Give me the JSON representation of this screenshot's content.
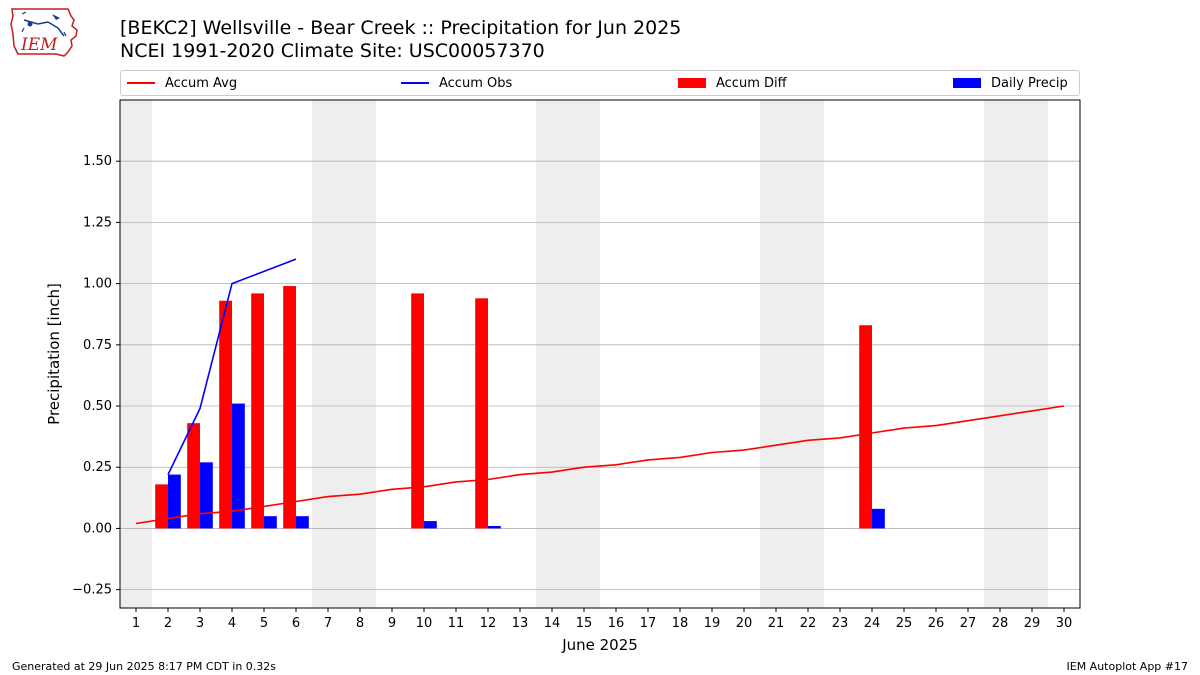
{
  "header": {
    "title": "[BEKC2] Wellsville - Bear Creek :: Precipitation for Jun 2025",
    "subtitle": "NCEI 1991-2020 Climate Site: USC00057370"
  },
  "logo": {
    "text": "IEM",
    "icon": "iowa-state-outline-icon"
  },
  "footer": {
    "left": "Generated at 29 Jun 2025 8:17 PM CDT in 0.32s",
    "right": "IEM Autoplot App #17"
  },
  "colors": {
    "avg": "#ff0000",
    "obs": "#0000ff",
    "diff": "#ff0000",
    "daily": "#0000ff",
    "weekend": "#eeeeee",
    "grid": "#b0b0b0"
  },
  "chart_data": {
    "type": "bar",
    "xlabel": "June 2025",
    "ylabel": "Precipitation [inch]",
    "xlim": [
      0.5,
      30.5
    ],
    "ylim": [
      -0.325,
      1.75
    ],
    "x": [
      1,
      2,
      3,
      4,
      5,
      6,
      7,
      8,
      9,
      10,
      11,
      12,
      13,
      14,
      15,
      16,
      17,
      18,
      19,
      20,
      21,
      22,
      23,
      24,
      25,
      26,
      27,
      28,
      29,
      30
    ],
    "x_tick_labels": [
      "1",
      "2",
      "3",
      "4",
      "5",
      "6",
      "7",
      "8",
      "9",
      "10",
      "11",
      "12",
      "13",
      "14",
      "15",
      "16",
      "17",
      "18",
      "19",
      "20",
      "21",
      "22",
      "23",
      "24",
      "25",
      "26",
      "27",
      "28",
      "29",
      "30"
    ],
    "y_ticks": [
      -0.25,
      0.0,
      0.25,
      0.5,
      0.75,
      1.0,
      1.25,
      1.5
    ],
    "y_tick_labels": [
      "−0.25",
      "0.00",
      "0.25",
      "0.50",
      "0.75",
      "1.00",
      "1.25",
      "1.50"
    ],
    "grid": "horizontal",
    "weekend_bands": [
      [
        0.5,
        1.5
      ],
      [
        6.5,
        8.5
      ],
      [
        13.5,
        15.5
      ],
      [
        20.5,
        22.5
      ],
      [
        27.5,
        29.5
      ]
    ],
    "legend": {
      "placement": "top",
      "entries": [
        {
          "label": "Accum Avg",
          "kind": "line",
          "color": "#ff0000"
        },
        {
          "label": "Accum Obs",
          "kind": "line",
          "color": "#0000ff"
        },
        {
          "label": "Accum Diff",
          "kind": "patch",
          "color": "#ff0000"
        },
        {
          "label": "Daily Precip",
          "kind": "patch",
          "color": "#0000ff"
        }
      ]
    },
    "series": [
      {
        "name": "Accum Avg",
        "kind": "line",
        "x": [
          1,
          2,
          3,
          4,
          5,
          6,
          7,
          8,
          9,
          10,
          11,
          12,
          13,
          14,
          15,
          16,
          17,
          18,
          19,
          20,
          21,
          22,
          23,
          24,
          25,
          26,
          27,
          28,
          29,
          30
        ],
        "values": [
          0.02,
          0.04,
          0.06,
          0.07,
          0.09,
          0.11,
          0.13,
          0.14,
          0.16,
          0.17,
          0.19,
          0.2,
          0.22,
          0.23,
          0.25,
          0.26,
          0.28,
          0.29,
          0.31,
          0.32,
          0.34,
          0.36,
          0.37,
          0.39,
          0.41,
          0.42,
          0.44,
          0.46,
          0.48,
          0.5
        ]
      },
      {
        "name": "Accum Obs",
        "kind": "line",
        "x": [
          2,
          3,
          4,
          5,
          6
        ],
        "values": [
          0.22,
          0.49,
          1.0,
          1.05,
          1.1
        ]
      },
      {
        "name": "Accum Diff",
        "kind": "bar",
        "x": [
          2,
          3,
          4,
          5,
          6,
          10,
          12,
          24
        ],
        "values": [
          0.18,
          0.43,
          0.93,
          0.96,
          0.99,
          0.96,
          0.94,
          0.83
        ]
      },
      {
        "name": "Daily Precip",
        "kind": "bar",
        "x": [
          2,
          3,
          4,
          5,
          6,
          10,
          12,
          24
        ],
        "values": [
          0.22,
          0.27,
          0.51,
          0.05,
          0.05,
          0.03,
          0.01,
          0.08
        ]
      }
    ]
  }
}
